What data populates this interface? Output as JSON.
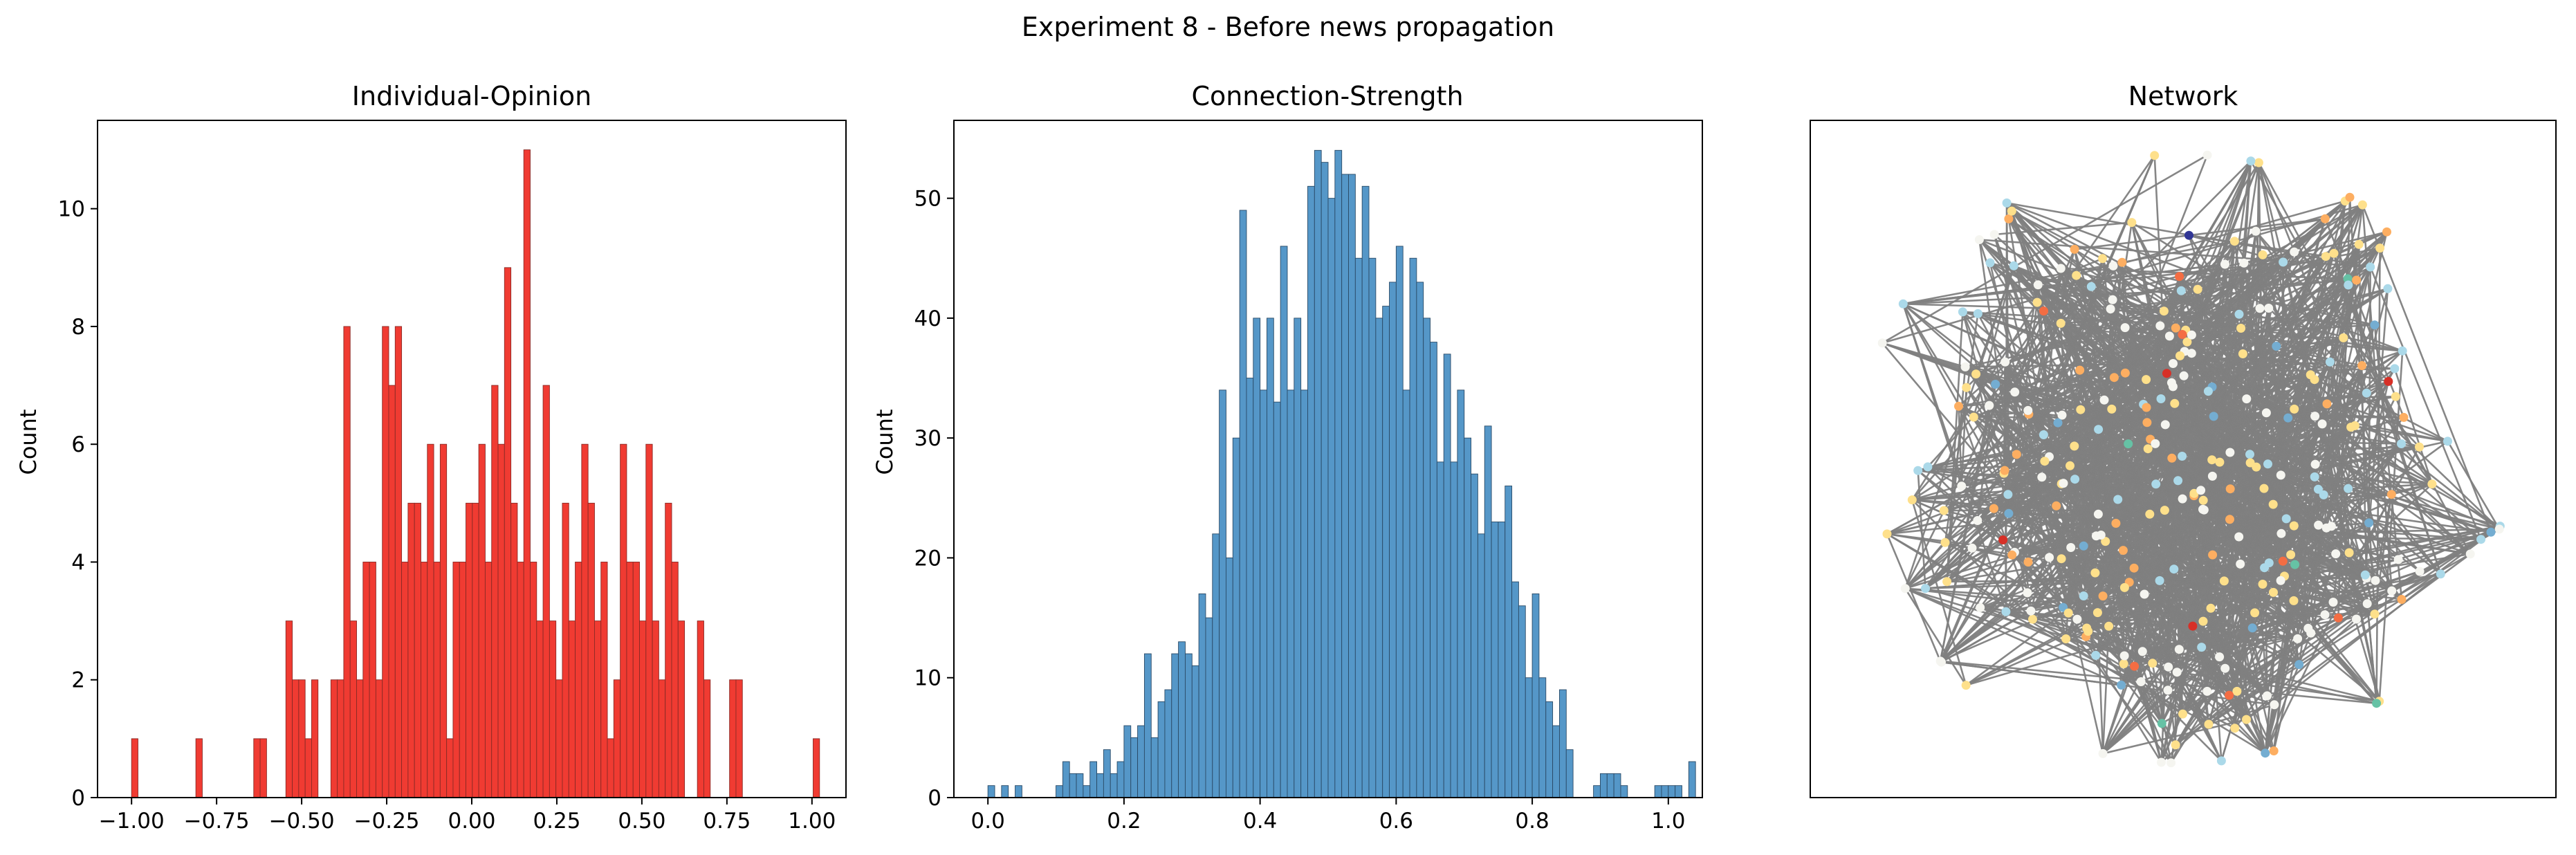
{
  "figure": {
    "suptitle": "Experiment 8 - Before news propagation"
  },
  "chart_data": [
    {
      "type": "bar",
      "subtype": "histogram",
      "title": "Individual-Opinion",
      "xlabel": "",
      "ylabel": "Count",
      "xlim": [
        -1.1,
        1.1
      ],
      "ylim": [
        0,
        11.5
      ],
      "xticks": [
        -1.0,
        -0.75,
        -0.5,
        -0.25,
        0.0,
        0.25,
        0.5,
        0.75,
        1.0
      ],
      "xtick_labels": [
        "−1.00",
        "−0.75",
        "−0.50",
        "−0.25",
        "0.00",
        "0.25",
        "0.50",
        "0.75",
        "1.00"
      ],
      "yticks": [
        0,
        2,
        4,
        6,
        8,
        10
      ],
      "ytick_labels": [
        "0",
        "2",
        "4",
        "6",
        "8",
        "10"
      ],
      "color": "#f03b32",
      "edge_color": "#8a2a25",
      "bin_start": -1.0,
      "bin_width": 0.0189,
      "values": [
        1,
        0,
        0,
        0,
        0,
        0,
        0,
        0,
        0,
        0,
        1,
        0,
        0,
        0,
        0,
        0,
        0,
        0,
        0,
        1,
        1,
        0,
        0,
        0,
        3,
        2,
        2,
        1,
        2,
        0,
        0,
        2,
        2,
        8,
        3,
        2,
        4,
        4,
        2,
        8,
        7,
        8,
        4,
        5,
        5,
        4,
        6,
        4,
        6,
        1,
        4,
        4,
        5,
        5,
        6,
        4,
        7,
        6,
        9,
        5,
        4,
        11,
        4,
        3,
        7,
        3,
        2,
        5,
        3,
        4,
        6,
        5,
        3,
        4,
        1,
        2,
        6,
        4,
        4,
        3,
        6,
        3,
        2,
        5,
        4,
        3,
        0,
        0,
        3,
        2,
        0,
        0,
        0,
        2,
        2,
        0,
        0,
        0,
        0,
        0,
        0,
        0,
        0,
        0,
        0,
        0,
        1
      ]
    },
    {
      "type": "bar",
      "subtype": "histogram",
      "title": "Connection-Strength",
      "xlabel": "",
      "ylabel": "Count",
      "xlim": [
        -0.05,
        1.05
      ],
      "ylim": [
        0,
        56.5
      ],
      "xticks": [
        0.0,
        0.2,
        0.4,
        0.6,
        0.8,
        1.0
      ],
      "xtick_labels": [
        "0.0",
        "0.2",
        "0.4",
        "0.6",
        "0.8",
        "1.0"
      ],
      "yticks": [
        0,
        10,
        20,
        30,
        40,
        50
      ],
      "ytick_labels": [
        "0",
        "10",
        "20",
        "30",
        "40",
        "50"
      ],
      "color": "#5597c8",
      "edge_color": "#2a4a66",
      "bin_start": 0.0,
      "bin_width": 0.01,
      "values": [
        1,
        0,
        1,
        0,
        1,
        0,
        0,
        0,
        0,
        0,
        1,
        3,
        2,
        2,
        1,
        3,
        2,
        4,
        2,
        3,
        6,
        5,
        6,
        12,
        5,
        8,
        9,
        12,
        13,
        12,
        11,
        17,
        15,
        22,
        34,
        20,
        30,
        49,
        35,
        40,
        34,
        40,
        33,
        46,
        34,
        40,
        34,
        51,
        54,
        53,
        50,
        54,
        52,
        52,
        45,
        51,
        45,
        40,
        41,
        43,
        46,
        34,
        45,
        43,
        40,
        38,
        28,
        37,
        28,
        34,
        30,
        27,
        22,
        31,
        23,
        23,
        26,
        18,
        16,
        10,
        17,
        10,
        8,
        6,
        9,
        4,
        0,
        0,
        0,
        1,
        2,
        2,
        2,
        1,
        0,
        0,
        0,
        0,
        1,
        1,
        1,
        1,
        0,
        3
      ]
    },
    {
      "type": "network",
      "title": "Network",
      "edge_color": "#7f7f7f",
      "node_colors": [
        "#f5f5f0",
        "#fee08b",
        "#abd9e9",
        "#fdae61",
        "#74add1",
        "#66c2a5",
        "#f46d43",
        "#d73027",
        "#313695",
        "#a50026"
      ]
    }
  ]
}
